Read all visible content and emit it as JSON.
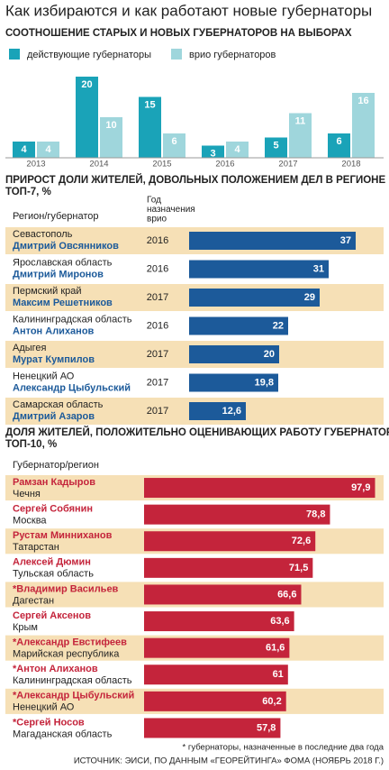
{
  "title": "Как избираются и как работают новые губернаторы",
  "footnote": "* губернаторы, назначенные в последние два года",
  "source": "ИСТОЧНИК: ЭИСИ, ПО ДАННЫМ «ГЕОРЕЙТИНГА» ФОМА (НОЯБРЬ 2018 Г.)",
  "chart_data": [
    {
      "type": "bar",
      "title": "СООТНОШЕНИЕ СТАРЫХ И НОВЫХ ГУБЕРНАТОРОВ НА ВЫБОРАХ",
      "categories": [
        "2013",
        "2014",
        "2015",
        "2016",
        "2017",
        "2018"
      ],
      "series": [
        {
          "name": "действующие губернаторы",
          "color": "#1aa3b8",
          "values": [
            4,
            20,
            15,
            3,
            5,
            6
          ]
        },
        {
          "name": "врио губернаторов",
          "color": "#9fd6dc",
          "values": [
            4,
            10,
            6,
            4,
            11,
            16
          ]
        }
      ],
      "ylim": [
        0,
        20
      ]
    },
    {
      "type": "barh",
      "title": "ПРИРОСТ ДОЛИ ЖИТЕЛЕЙ, ДОВОЛЬНЫХ ПОЛОЖЕНИЕМ ДЕЛ В РЕГИОНЕ",
      "subtitle": "ТОП-7, %",
      "label_header": "Регион/губернатор",
      "year_header": [
        "Год",
        "назначения",
        "врио"
      ],
      "regions": [
        "Севастополь",
        "Ярославская область",
        "Пермский край",
        "Калининградская область",
        "Адыгея",
        "Ненецкий АО",
        "Самарская область"
      ],
      "governors": [
        "Дмитрий Овсянников",
        "Дмитрий Миронов",
        "Максим Решетников",
        "Антон Алиханов",
        "Мурат Кумпилов",
        "Александр Цыбульский",
        "Дмитрий Азаров"
      ],
      "years": [
        "2016",
        "2016",
        "2017",
        "2016",
        "2017",
        "2017",
        "2017"
      ],
      "values": [
        37,
        31,
        29,
        22,
        20,
        19.8,
        12.6
      ],
      "value_labels": [
        "37",
        "31",
        "29",
        "22",
        "20",
        "19,8",
        "12,6"
      ],
      "color": "#1c5a9a",
      "xlim": [
        0,
        37
      ]
    },
    {
      "type": "barh",
      "title": "ДОЛЯ ЖИТЕЛЕЙ, ПОЛОЖИТЕЛЬНО ОЦЕНИВАЮЩИХ РАБОТУ  ГУБЕРНАТОРОВ",
      "subtitle": "ТОП-10, %",
      "label_header": "Губернатор/регион",
      "governors": [
        "Рамзан Кадыров",
        "Сергей Собянин",
        "Рустам Минниханов",
        "Алексей Дюмин",
        "*Владимир Васильев",
        "Сергей Аксенов",
        "*Александр Евстифеев",
        "*Антон Алиханов",
        "*Александр Цыбульский",
        "*Сергей Носов"
      ],
      "regions": [
        "Чечня",
        "Москва",
        "Татарстан",
        "Тульская область",
        "Дагестан",
        "Крым",
        "Марийская республика",
        "Калининградская область",
        "Ненецкий АО",
        "Магаданская область"
      ],
      "values": [
        97.9,
        78.8,
        72.6,
        71.5,
        66.6,
        63.6,
        61.6,
        61,
        60.2,
        57.8
      ],
      "value_labels": [
        "97,9",
        "78,8",
        "72,6",
        "71,5",
        "66,6",
        "63,6",
        "61,6",
        "61",
        "60,2",
        "57,8"
      ],
      "color": "#c4243b",
      "xlim": [
        0,
        100
      ]
    }
  ]
}
